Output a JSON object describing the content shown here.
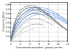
{
  "chart_data": {
    "type": "line",
    "xlabel": "Concentration equivalent - g/equiv. per litre",
    "ylabel": "Conductivity (S/m)",
    "xlim": [
      0,
      12
    ],
    "ylim": [
      0,
      0.85
    ],
    "xticks": [
      0,
      2,
      4,
      6,
      8,
      10,
      12
    ],
    "yticks": [
      0.1,
      0.2,
      0.3,
      0.4,
      0.5,
      0.6,
      0.7,
      0.8
    ],
    "grid": true,
    "series": [
      {
        "color": "#4488dd",
        "line_style": "dashed",
        "x": [
          0,
          0.3,
          0.5,
          1,
          1.5,
          2,
          3,
          4,
          5,
          6,
          7,
          8,
          9,
          10,
          11,
          12
        ],
        "values": [
          0,
          0.15,
          0.22,
          0.36,
          0.46,
          0.54,
          0.64,
          0.7,
          0.73,
          0.74,
          0.73,
          0.7,
          0.65,
          0.59,
          0.52,
          0.44
        ]
      },
      {
        "color": "#4488dd",
        "line_style": "solid",
        "x": [
          0,
          0.3,
          0.5,
          1,
          1.5,
          2,
          3,
          4,
          5,
          6,
          7,
          8,
          9,
          10,
          11,
          12
        ],
        "values": [
          0,
          0.13,
          0.19,
          0.31,
          0.4,
          0.48,
          0.58,
          0.65,
          0.68,
          0.69,
          0.68,
          0.65,
          0.61,
          0.56,
          0.49,
          0.42
        ]
      },
      {
        "color": "#4488dd",
        "line_style": "dashdot",
        "x": [
          0,
          0.3,
          0.5,
          1,
          1.5,
          2,
          3,
          4,
          5,
          6,
          7,
          8,
          9,
          10,
          11,
          12
        ],
        "values": [
          0,
          0.11,
          0.16,
          0.26,
          0.34,
          0.41,
          0.52,
          0.59,
          0.63,
          0.64,
          0.63,
          0.61,
          0.57,
          0.52,
          0.46,
          0.39
        ]
      },
      {
        "color": "#66aaee",
        "line_style": "dotted",
        "x": [
          0,
          0.3,
          0.5,
          1,
          1.5,
          2,
          3,
          4,
          5,
          6,
          7,
          8,
          9,
          10,
          11,
          12
        ],
        "values": [
          0,
          0.09,
          0.13,
          0.21,
          0.28,
          0.34,
          0.45,
          0.52,
          0.57,
          0.58,
          0.58,
          0.56,
          0.53,
          0.49,
          0.43,
          0.37
        ]
      },
      {
        "color": "#555555",
        "line_style": "dashed",
        "x": [
          0,
          0.3,
          0.5,
          1,
          1.5,
          2,
          3,
          4,
          5,
          6,
          7,
          8,
          9,
          10,
          11,
          12
        ],
        "values": [
          0,
          0.2,
          0.3,
          0.48,
          0.59,
          0.67,
          0.75,
          0.78,
          0.77,
          0.73,
          0.66,
          0.58,
          0.49,
          0.4,
          0.31,
          0.22
        ]
      },
      {
        "color": "#444444",
        "line_style": "solid",
        "x": [
          0,
          0.3,
          0.5,
          1,
          1.5,
          2,
          3,
          4,
          5,
          6,
          7,
          8,
          9,
          10,
          11,
          12
        ],
        "values": [
          0,
          0.17,
          0.26,
          0.43,
          0.53,
          0.61,
          0.7,
          0.74,
          0.74,
          0.71,
          0.65,
          0.57,
          0.49,
          0.4,
          0.31,
          0.23
        ]
      },
      {
        "color": "#666666",
        "line_style": "dashdot",
        "x": [
          0,
          0.3,
          0.5,
          1,
          1.5,
          2,
          3,
          4,
          5,
          6,
          7,
          8,
          9,
          10,
          11,
          12
        ],
        "values": [
          0,
          0.14,
          0.21,
          0.35,
          0.45,
          0.53,
          0.63,
          0.68,
          0.69,
          0.67,
          0.62,
          0.55,
          0.47,
          0.39,
          0.31,
          0.23
        ]
      },
      {
        "color": "#888888",
        "line_style": "dotted",
        "x": [
          0,
          0.3,
          0.5,
          1,
          1.5,
          2,
          3,
          4,
          5,
          6,
          7,
          8,
          9,
          10,
          11
        ],
        "values": [
          0,
          0.1,
          0.15,
          0.26,
          0.34,
          0.42,
          0.53,
          0.59,
          0.61,
          0.6,
          0.56,
          0.51,
          0.44,
          0.37,
          0.29
        ]
      },
      {
        "color": "#999999",
        "line_style": "dashed",
        "x": [
          0,
          0.3,
          0.5,
          1,
          1.5,
          2,
          3,
          4,
          5,
          6,
          7,
          8,
          9
        ],
        "values": [
          0,
          0.07,
          0.1,
          0.18,
          0.25,
          0.31,
          0.41,
          0.47,
          0.49,
          0.48,
          0.45,
          0.4,
          0.34
        ]
      },
      {
        "color": "#aaaaaa",
        "line_style": "solid",
        "x": [
          0,
          0.3,
          0.5,
          1,
          1.5,
          2,
          3,
          4,
          5,
          6,
          7
        ],
        "values": [
          0,
          0.05,
          0.07,
          0.12,
          0.17,
          0.22,
          0.3,
          0.35,
          0.37,
          0.37,
          0.35
        ]
      },
      {
        "color": "#bbbbbb",
        "line_style": "dashdot",
        "x": [
          0,
          0.3,
          0.5,
          1,
          1.5,
          2,
          3,
          4,
          5
        ],
        "values": [
          0,
          0.03,
          0.05,
          0.09,
          0.12,
          0.15,
          0.21,
          0.25,
          0.27
        ]
      }
    ]
  }
}
